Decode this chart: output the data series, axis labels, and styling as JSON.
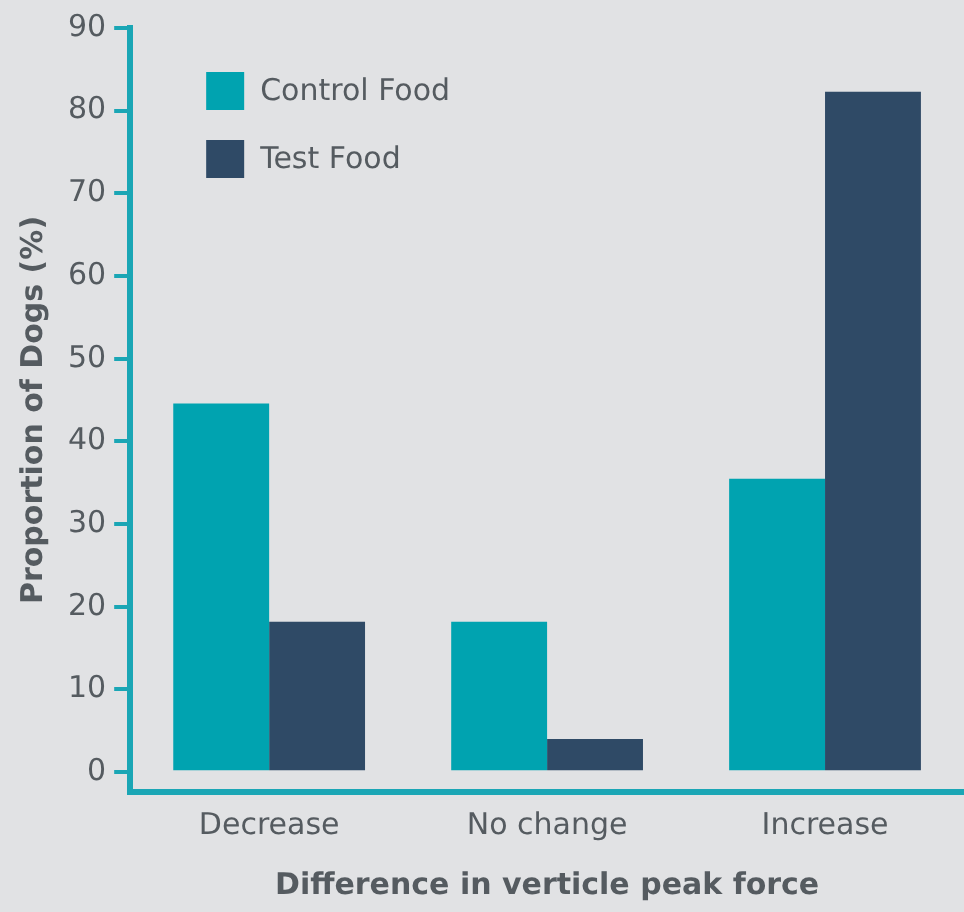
{
  "chart_data": {
    "type": "bar",
    "xlabel": "Difference in verticle peak force",
    "ylabel": "Proportion of Dogs (%)",
    "categories": [
      "Decrease",
      "No change",
      "Increase"
    ],
    "series": [
      {
        "name": "Control Food",
        "color": "#00a3b0",
        "values": [
          44.6,
          18.2,
          35.5
        ]
      },
      {
        "name": "Test Food",
        "color": "#2f4a66",
        "values": [
          18.2,
          4.0,
          82.3
        ]
      }
    ],
    "ylim": [
      -2.4,
      90
    ],
    "yticks": [
      0,
      10,
      20,
      30,
      40,
      50,
      60,
      70,
      80,
      90
    ],
    "grid": false,
    "legend": "top left"
  }
}
